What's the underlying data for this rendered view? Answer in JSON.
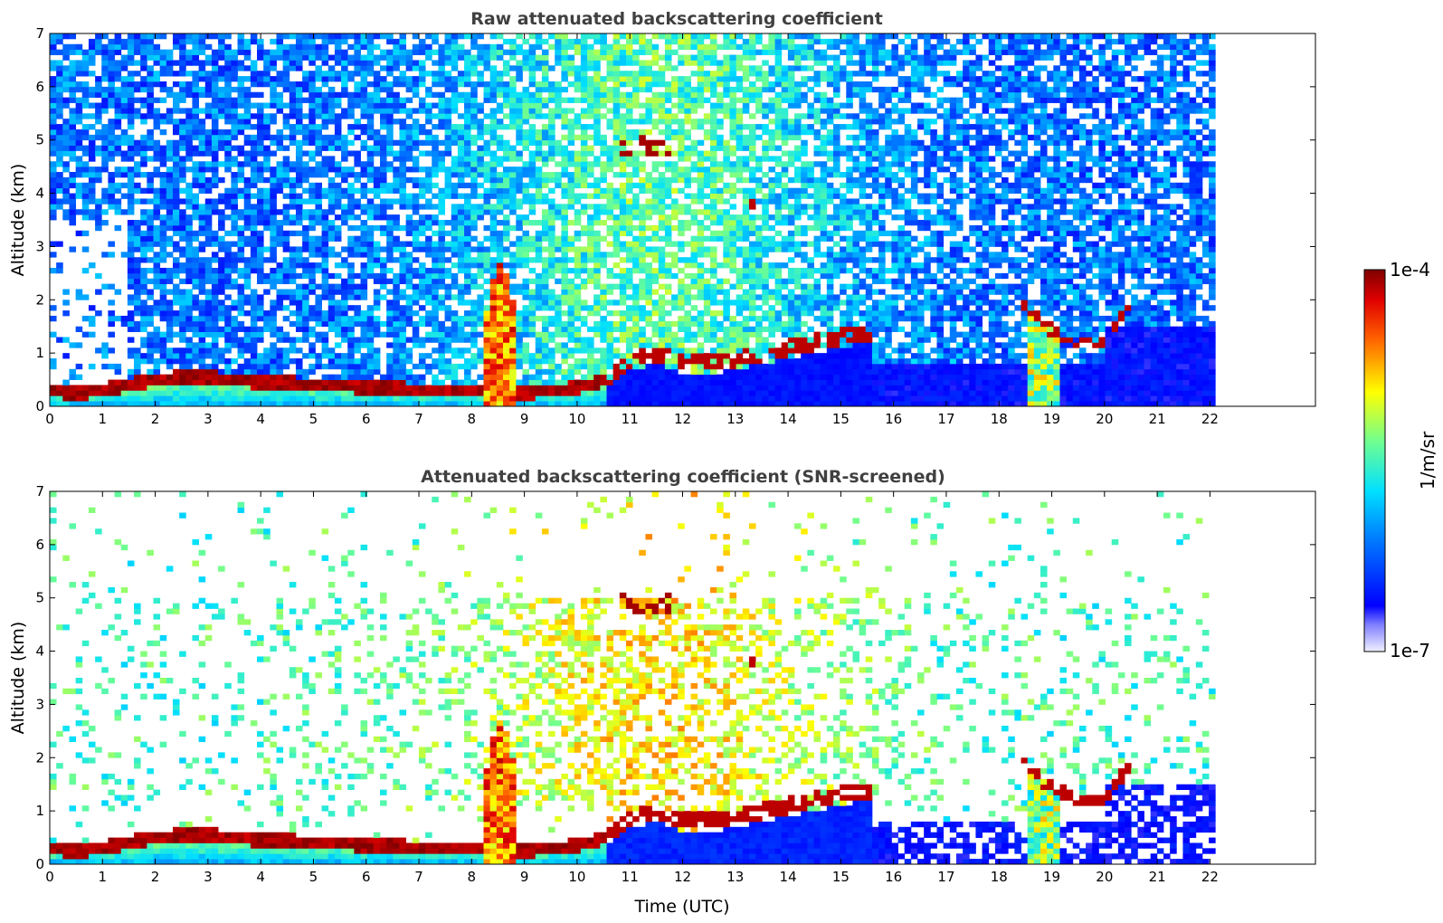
{
  "chart_data": [
    {
      "type": "heatmap",
      "title": "Raw attenuated backscattering coefficient",
      "xlabel": "",
      "ylabel": "Altitude (km)",
      "xlim": [
        0,
        24
      ],
      "ylim": [
        0,
        7
      ],
      "x_ticks": [
        0,
        1,
        2,
        3,
        4,
        5,
        6,
        7,
        8,
        9,
        10,
        11,
        12,
        13,
        14,
        15,
        16,
        17,
        18,
        19,
        20,
        21,
        22
      ],
      "y_ticks": [
        0,
        1,
        2,
        3,
        4,
        5,
        6,
        7
      ],
      "data_end_time": 22.1,
      "features": [
        {
          "name": "boundary layer aerosol top",
          "time": [
            0,
            0.5,
            1,
            1.5,
            2,
            2.5,
            3,
            3.5,
            4,
            4.5,
            5,
            5.5,
            6,
            6.5,
            7,
            7.5,
            8,
            8.5,
            9,
            9.5,
            10,
            10.5
          ],
          "altitude": [
            0.3,
            0.25,
            0.3,
            0.4,
            0.5,
            0.55,
            0.55,
            0.5,
            0.45,
            0.45,
            0.4,
            0.4,
            0.35,
            0.35,
            0.3,
            0.3,
            0.3,
            0.3,
            0.25,
            0.3,
            0.35,
            0.5
          ]
        },
        {
          "name": "convective plume",
          "time": [
            8.3,
            8.8
          ],
          "altitude": [
            0.0,
            2.7
          ]
        },
        {
          "name": "cloud layer",
          "time": [
            10.5,
            11,
            11.5,
            12,
            12.5,
            13,
            13.5,
            14,
            14.5,
            15,
            15.5
          ],
          "altitude": [
            0.5,
            0.9,
            1.0,
            0.8,
            0.8,
            0.9,
            1.0,
            1.1,
            1.2,
            1.3,
            1.4
          ]
        },
        {
          "name": "mid-level cloud",
          "time": [
            10.8,
            11.8
          ],
          "altitude": [
            4.7,
            5.1
          ]
        },
        {
          "name": "evening cloud",
          "time": [
            18.4,
            18.9,
            19.5,
            20.0,
            20.5
          ],
          "altitude": [
            2.0,
            1.5,
            1.2,
            1.2,
            1.9
          ]
        }
      ]
    },
    {
      "type": "heatmap",
      "title": "Attenuated backscattering coefficient (SNR-screened)",
      "xlabel": "Time (UTC)",
      "ylabel": "Altitude (km)",
      "xlim": [
        0,
        24
      ],
      "ylim": [
        0,
        7
      ],
      "x_ticks": [
        0,
        1,
        2,
        3,
        4,
        5,
        6,
        7,
        8,
        9,
        10,
        11,
        12,
        13,
        14,
        15,
        16,
        17,
        18,
        19,
        20,
        21,
        22
      ],
      "y_ticks": [
        0,
        1,
        2,
        3,
        4,
        5,
        6,
        7
      ],
      "data_end_time": 22.1
    }
  ],
  "colorbar": {
    "max_label": "1e-4",
    "min_label": "1e-7",
    "unit_label": "1/m/sr",
    "scale": "log",
    "colormap": "jet"
  }
}
